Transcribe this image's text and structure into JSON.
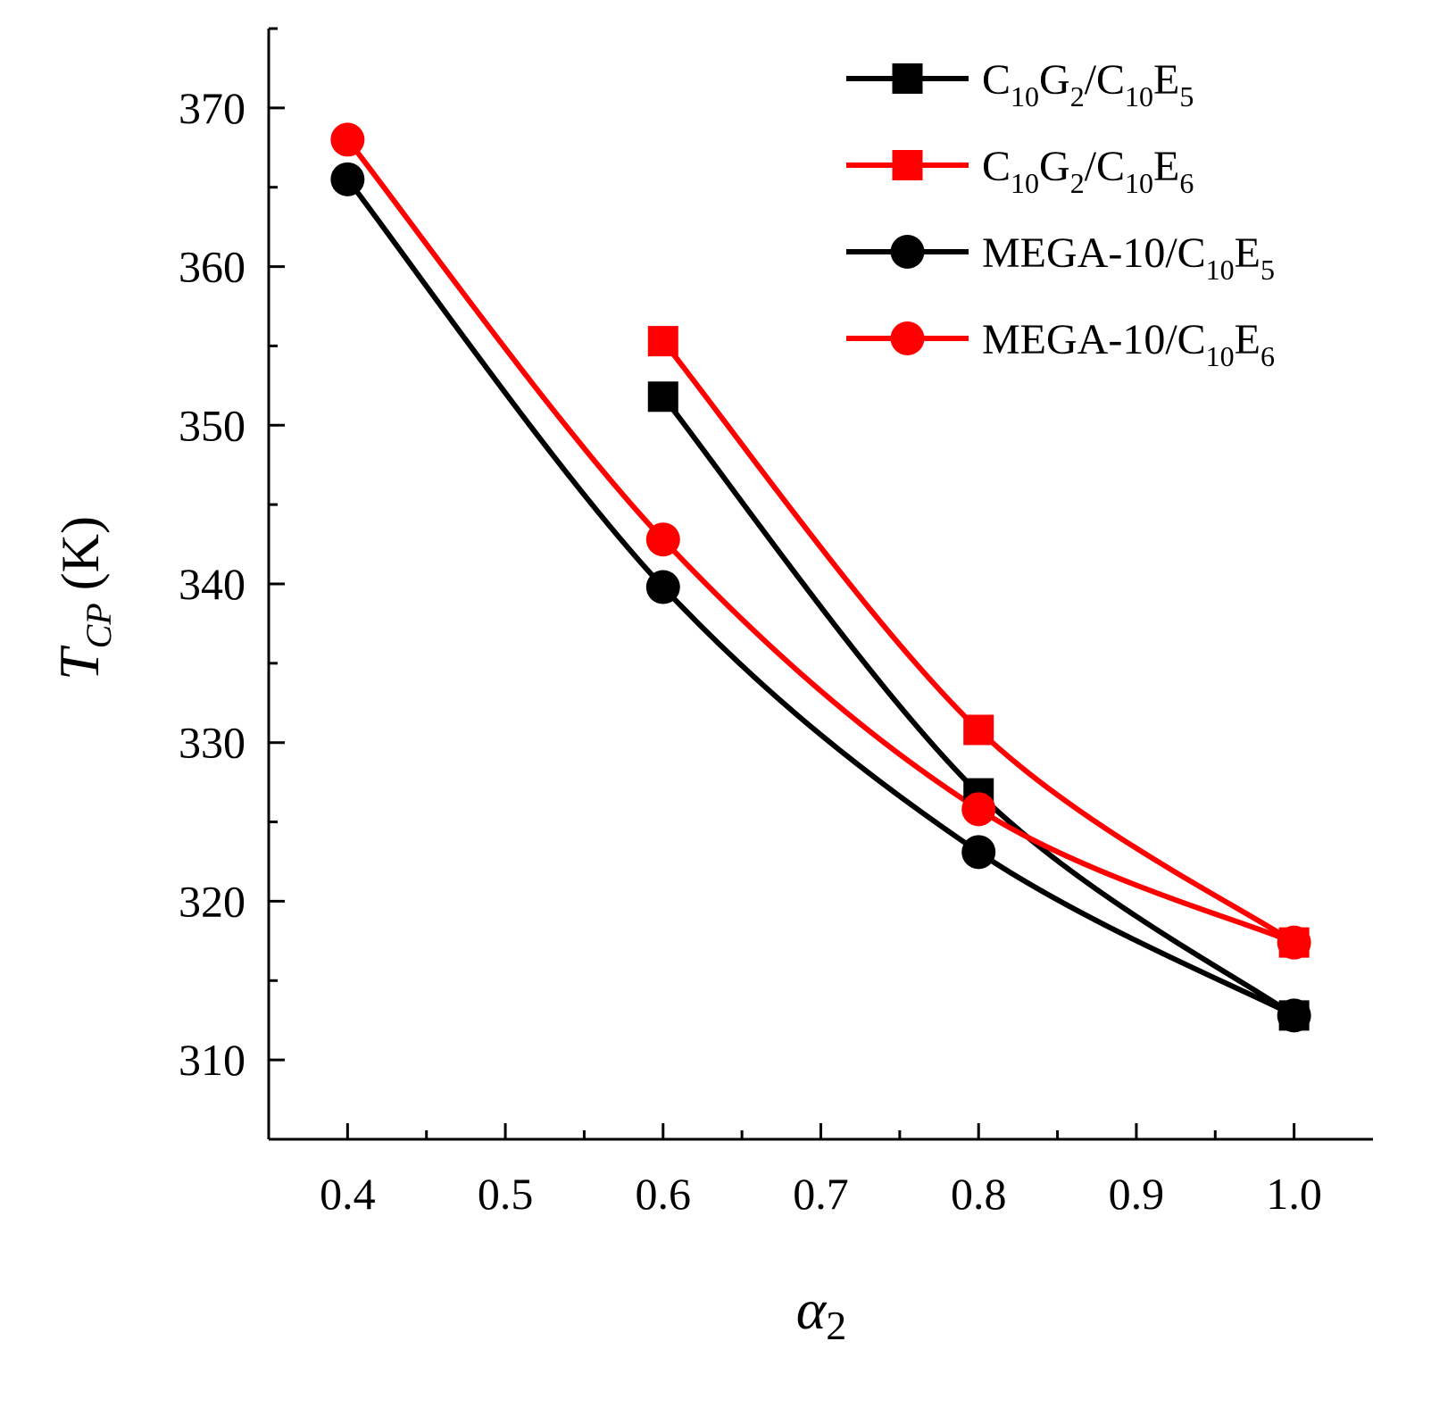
{
  "chart_data": {
    "type": "line",
    "title": "",
    "xlabel": {
      "symbol": "α",
      "subscript": "2"
    },
    "ylabel": {
      "symbol": "T",
      "subscript": "CP",
      "unit": "(K)"
    },
    "xlim": [
      0.35,
      1.05
    ],
    "ylim": [
      305,
      375
    ],
    "x_ticks": [
      "0.4",
      "0.5",
      "0.6",
      "0.7",
      "0.8",
      "0.9",
      "1.0"
    ],
    "x_tick_values": [
      0.4,
      0.5,
      0.6,
      0.7,
      0.8,
      0.9,
      1.0
    ],
    "y_ticks": [
      "310",
      "320",
      "330",
      "340",
      "350",
      "360",
      "370"
    ],
    "y_tick_values": [
      310,
      320,
      330,
      340,
      350,
      360,
      370
    ],
    "grid": false,
    "legend_position": "top-right",
    "series": [
      {
        "name": "C10G2/C10E5",
        "legend_parts": [
          {
            "t": "C",
            "sub": false
          },
          {
            "t": "10",
            "sub": true
          },
          {
            "t": "G",
            "sub": false
          },
          {
            "t": "2",
            "sub": true
          },
          {
            "t": "/C",
            "sub": false
          },
          {
            "t": "10",
            "sub": true
          },
          {
            "t": "E",
            "sub": false
          },
          {
            "t": "5",
            "sub": true
          }
        ],
        "color": "#000000",
        "marker": "square",
        "x": [
          0.6,
          0.8,
          1.0
        ],
        "y": [
          351.8,
          326.8,
          312.8
        ]
      },
      {
        "name": "C10G2/C10E6",
        "legend_parts": [
          {
            "t": "C",
            "sub": false
          },
          {
            "t": "10",
            "sub": true
          },
          {
            "t": "G",
            "sub": false
          },
          {
            "t": "2",
            "sub": true
          },
          {
            "t": "/C",
            "sub": false
          },
          {
            "t": "10",
            "sub": true
          },
          {
            "t": "E",
            "sub": false
          },
          {
            "t": "6",
            "sub": true
          }
        ],
        "color": "#ff0000",
        "marker": "square",
        "x": [
          0.6,
          0.8,
          1.0
        ],
        "y": [
          355.3,
          330.8,
          317.4
        ]
      },
      {
        "name": "MEGA-10/C10E5",
        "legend_parts": [
          {
            "t": "MEGA-10/C",
            "sub": false
          },
          {
            "t": "10",
            "sub": true
          },
          {
            "t": "E",
            "sub": false
          },
          {
            "t": "5",
            "sub": true
          }
        ],
        "color": "#000000",
        "marker": "circle",
        "x": [
          0.4,
          0.6,
          0.8,
          1.0
        ],
        "y": [
          365.5,
          339.8,
          323.1,
          312.8
        ]
      },
      {
        "name": "MEGA-10/C10E6",
        "legend_parts": [
          {
            "t": "MEGA-10/C",
            "sub": false
          },
          {
            "t": "10",
            "sub": true
          },
          {
            "t": "E",
            "sub": false
          },
          {
            "t": "6",
            "sub": true
          }
        ],
        "color": "#ff0000",
        "marker": "circle",
        "x": [
          0.4,
          0.6,
          0.8,
          1.0
        ],
        "y": [
          368.0,
          342.8,
          325.8,
          317.4
        ]
      }
    ]
  }
}
